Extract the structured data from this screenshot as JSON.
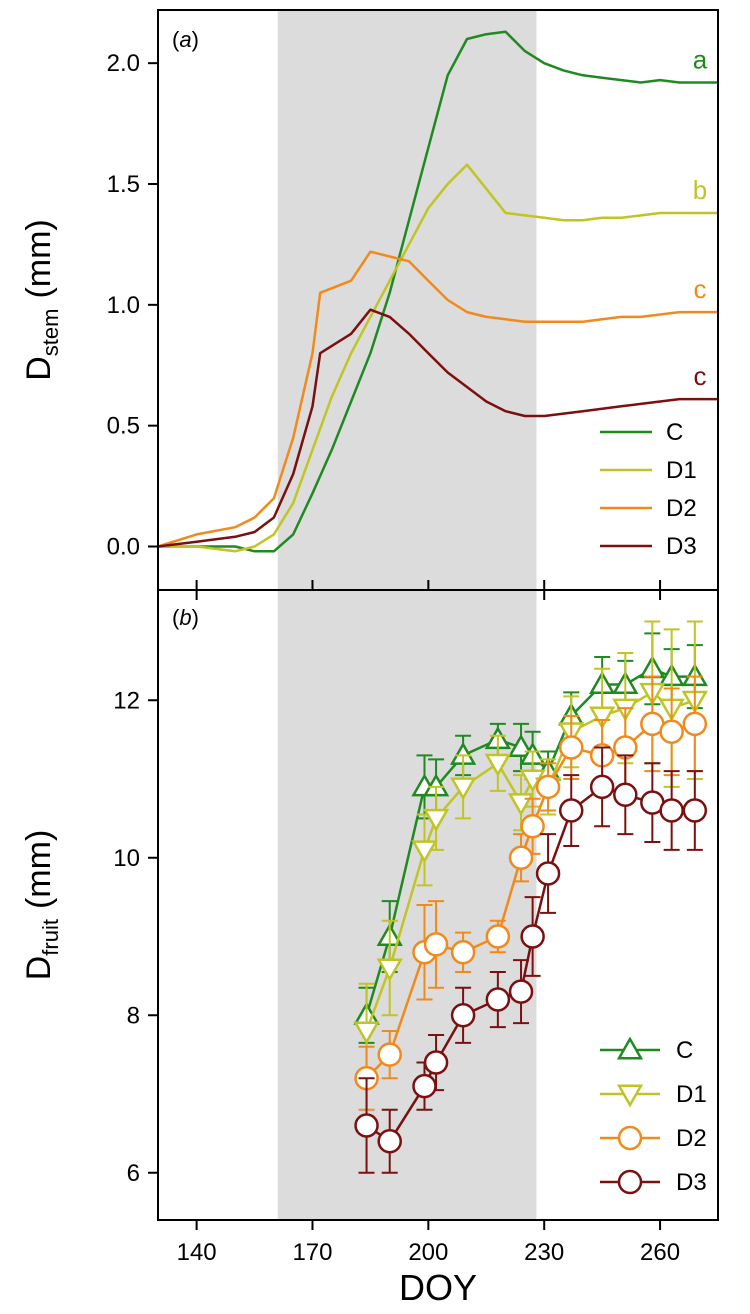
{
  "chart_data": [
    {
      "panel": "a",
      "panel_label": "a",
      "type": "line",
      "ylabel_main": "D",
      "ylabel_sub": "stem",
      "ylabel_unit": "(mm)",
      "xlim": [
        130,
        275
      ],
      "ylim": [
        -0.18,
        2.22
      ],
      "xticks": [
        140,
        170,
        200,
        230,
        260
      ],
      "yticks": [
        0.0,
        0.5,
        1.0,
        1.5,
        2.0
      ],
      "ytick_labels": [
        "0.0",
        "0.5",
        "1.0",
        "1.5",
        "2.0"
      ],
      "shaded_interval": [
        161,
        228
      ],
      "series": [
        {
          "name": "C",
          "color": "#1f8a1f",
          "x": [
            130,
            140,
            150,
            155,
            160,
            165,
            170,
            175,
            180,
            185,
            190,
            195,
            200,
            205,
            210,
            215,
            220,
            225,
            230,
            235,
            240,
            245,
            250,
            255,
            260,
            265,
            270,
            275
          ],
          "y": [
            0.0,
            0.0,
            0.0,
            -0.02,
            -0.02,
            0.05,
            0.22,
            0.4,
            0.6,
            0.8,
            1.05,
            1.35,
            1.65,
            1.95,
            2.1,
            2.12,
            2.13,
            2.05,
            2.0,
            1.97,
            1.95,
            1.94,
            1.93,
            1.92,
            1.93,
            1.92,
            1.92,
            1.92
          ],
          "end_label": "a"
        },
        {
          "name": "D1",
          "color": "#c0c424",
          "x": [
            130,
            140,
            150,
            155,
            160,
            165,
            170,
            175,
            180,
            185,
            190,
            195,
            200,
            205,
            210,
            215,
            220,
            225,
            230,
            235,
            240,
            245,
            250,
            255,
            260,
            265,
            270,
            275
          ],
          "y": [
            0.0,
            0.0,
            -0.02,
            0.0,
            0.05,
            0.18,
            0.4,
            0.62,
            0.8,
            0.95,
            1.1,
            1.25,
            1.4,
            1.5,
            1.58,
            1.48,
            1.38,
            1.37,
            1.36,
            1.35,
            1.35,
            1.36,
            1.36,
            1.37,
            1.38,
            1.38,
            1.38,
            1.38
          ],
          "end_label": "b"
        },
        {
          "name": "D2",
          "color": "#f08a1c",
          "x": [
            130,
            140,
            150,
            155,
            160,
            165,
            170,
            172,
            180,
            185,
            190,
            195,
            200,
            205,
            210,
            215,
            220,
            225,
            230,
            235,
            240,
            245,
            250,
            255,
            260,
            265,
            270,
            275
          ],
          "y": [
            0.0,
            0.05,
            0.08,
            0.12,
            0.2,
            0.45,
            0.8,
            1.05,
            1.1,
            1.22,
            1.2,
            1.18,
            1.1,
            1.02,
            0.97,
            0.95,
            0.94,
            0.93,
            0.93,
            0.93,
            0.93,
            0.94,
            0.95,
            0.95,
            0.96,
            0.97,
            0.97,
            0.97
          ],
          "end_label": "c"
        },
        {
          "name": "D3",
          "color": "#7a1010",
          "x": [
            130,
            140,
            150,
            155,
            160,
            165,
            170,
            172,
            180,
            185,
            190,
            195,
            200,
            205,
            210,
            215,
            220,
            225,
            230,
            235,
            240,
            245,
            250,
            255,
            260,
            265,
            270,
            275
          ],
          "y": [
            0.0,
            0.02,
            0.04,
            0.06,
            0.12,
            0.3,
            0.58,
            0.8,
            0.88,
            0.98,
            0.95,
            0.88,
            0.8,
            0.72,
            0.66,
            0.6,
            0.56,
            0.54,
            0.54,
            0.55,
            0.56,
            0.57,
            0.58,
            0.59,
            0.6,
            0.61,
            0.61,
            0.61
          ],
          "end_label": "c"
        }
      ],
      "legend": [
        "C",
        "D1",
        "D2",
        "D3"
      ],
      "legend_position": "bottom-right"
    },
    {
      "panel": "b",
      "panel_label": "b",
      "type": "line",
      "ylabel_main": "D",
      "ylabel_sub": "fruit",
      "ylabel_unit": "(mm)",
      "xlabel": "DOY",
      "xlim": [
        130,
        275
      ],
      "ylim": [
        5.4,
        13.4
      ],
      "xticks": [
        140,
        170,
        200,
        230,
        260
      ],
      "xtick_labels": [
        "140",
        "170",
        "200",
        "230",
        "260"
      ],
      "yticks": [
        6,
        8,
        10,
        12
      ],
      "ytick_labels": [
        "6",
        "8",
        "10",
        "12"
      ],
      "shaded_interval": [
        161,
        228
      ],
      "series": [
        {
          "name": "C",
          "color": "#1f8a1f",
          "marker": "triangle-up",
          "x": [
            184,
            190,
            199,
            202,
            209,
            218,
            224,
            227,
            231,
            237,
            245,
            251,
            258,
            263,
            269
          ],
          "y": [
            8.0,
            9.0,
            10.9,
            10.9,
            11.3,
            11.5,
            11.4,
            11.3,
            11.1,
            11.8,
            12.2,
            12.2,
            12.4,
            12.3,
            12.3
          ],
          "err": [
            0.35,
            0.45,
            0.4,
            0.35,
            0.25,
            0.2,
            0.3,
            0.3,
            0.25,
            0.3,
            0.35,
            0.3,
            0.45,
            0.35,
            0.4
          ]
        },
        {
          "name": "D1",
          "color": "#c0c424",
          "marker": "triangle-down",
          "x": [
            184,
            190,
            199,
            202,
            209,
            218,
            224,
            227,
            231,
            237,
            245,
            251,
            258,
            263,
            269
          ],
          "y": [
            7.8,
            8.6,
            10.1,
            10.5,
            10.9,
            11.2,
            10.7,
            11.0,
            10.9,
            11.6,
            11.8,
            11.9,
            12.1,
            11.9,
            12.0
          ],
          "err": [
            0.6,
            0.6,
            0.45,
            0.4,
            0.4,
            0.35,
            0.35,
            0.35,
            0.35,
            0.45,
            0.6,
            0.7,
            0.9,
            1.0,
            1.0
          ]
        },
        {
          "name": "D2",
          "color": "#f08a1c",
          "marker": "circle",
          "x": [
            184,
            190,
            199,
            202,
            209,
            218,
            224,
            227,
            231,
            237,
            245,
            251,
            258,
            263,
            269
          ],
          "y": [
            7.2,
            7.5,
            8.8,
            8.9,
            8.8,
            9.0,
            10.0,
            10.4,
            10.9,
            11.4,
            11.3,
            11.4,
            11.7,
            11.6,
            11.7
          ],
          "err": [
            0.4,
            0.3,
            0.6,
            0.55,
            0.25,
            0.2,
            0.3,
            0.35,
            0.3,
            0.4,
            0.45,
            0.5,
            0.6,
            0.55,
            0.6
          ]
        },
        {
          "name": "D3",
          "color": "#7a1010",
          "marker": "circle",
          "x": [
            184,
            190,
            199,
            202,
            209,
            218,
            224,
            227,
            231,
            237,
            245,
            251,
            258,
            263,
            269
          ],
          "y": [
            6.6,
            6.4,
            7.1,
            7.4,
            8.0,
            8.2,
            8.3,
            9.0,
            9.8,
            10.6,
            10.9,
            10.8,
            10.7,
            10.6,
            10.6
          ],
          "err": [
            0.6,
            0.4,
            0.3,
            0.35,
            0.35,
            0.35,
            0.4,
            0.5,
            0.5,
            0.45,
            0.5,
            0.5,
            0.5,
            0.5,
            0.5
          ]
        }
      ],
      "legend": [
        "C",
        "D1",
        "D2",
        "D3"
      ],
      "legend_position": "bottom-right"
    }
  ]
}
